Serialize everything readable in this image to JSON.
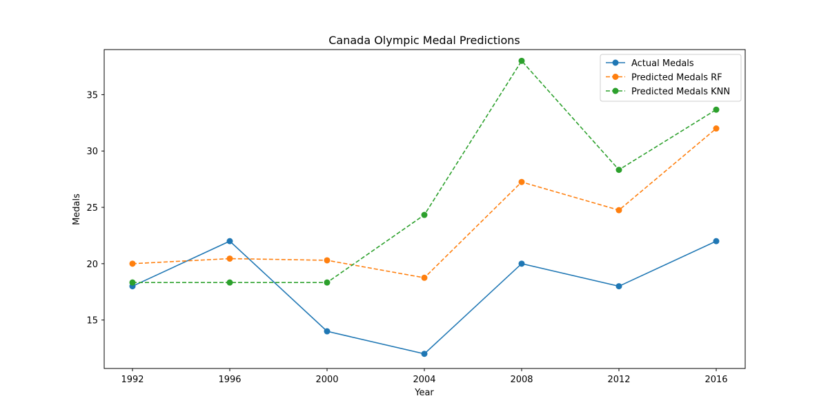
{
  "chart_data": {
    "type": "line",
    "title": "Canada Olympic Medal Predictions",
    "xlabel": "Year",
    "ylabel": "Medals",
    "x": [
      1992,
      1996,
      2000,
      2004,
      2008,
      2012,
      2016
    ],
    "xticks": [
      "1992",
      "1996",
      "2000",
      "2004",
      "2008",
      "2012",
      "2016"
    ],
    "yticks": [
      "15",
      "20",
      "25",
      "30",
      "35"
    ],
    "ylim": [
      10.7,
      39
    ],
    "grid": false,
    "legend_position": "top-right",
    "series": [
      {
        "name": "Actual Medals",
        "values": [
          18,
          22,
          14,
          12,
          20,
          18,
          22
        ],
        "color": "#1f77b4",
        "style": "solid"
      },
      {
        "name": "Predicted Medals RF",
        "values": [
          20,
          20.45,
          20.3,
          18.75,
          27.25,
          24.75,
          32
        ],
        "color": "#ff7f0e",
        "style": "dashed"
      },
      {
        "name": "Predicted Medals KNN",
        "values": [
          18.33,
          18.33,
          18.33,
          24.33,
          38,
          28.33,
          33.67
        ],
        "color": "#2ca02c",
        "style": "dashed"
      }
    ]
  }
}
